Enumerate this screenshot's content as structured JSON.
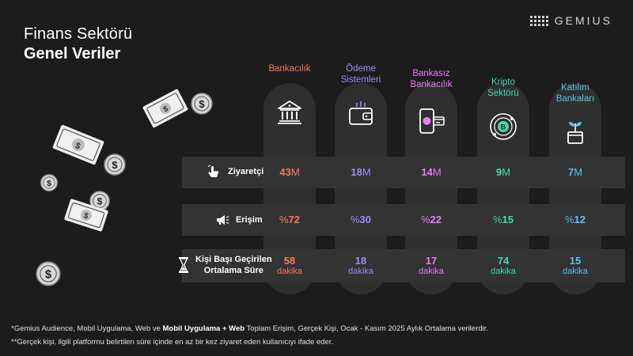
{
  "header": {
    "title_line1": "Finans Sektörü",
    "title_line2": "Genel Veriler",
    "brand": "GEMIUS"
  },
  "columns": [
    {
      "name": "Bankacılık",
      "color": "#f47c5c",
      "icon": "bank-icon"
    },
    {
      "name": "Ödeme Sistemleri",
      "color": "#a18bf5",
      "icon": "wallet-icon"
    },
    {
      "name": "Bankasız Bankacılık",
      "color": "#e97ef0",
      "icon": "mobile-payment-icon"
    },
    {
      "name": "Kripto Sektörü",
      "color": "#3fdcb0",
      "icon": "bitcoin-icon"
    },
    {
      "name": "Katılım Bankaları",
      "color": "#58c4e8",
      "icon": "plant-box-icon"
    }
  ],
  "rows": {
    "ziyaretci": "Ziyaretçi",
    "erisim": "Erişim",
    "sure_line1": "Kişi Başı Geçirilen",
    "sure_line2": "Ortalama Süre"
  },
  "chart_data": {
    "type": "table",
    "title": "Finans Sektörü Genel Veriler",
    "categories": [
      "Bankacılık",
      "Ödeme Sistemleri",
      "Bankasız Bankacılık",
      "Kripto Sektörü",
      "Katılım Bankaları"
    ],
    "series": [
      {
        "name": "Ziyaretçi",
        "unit": "M",
        "values": [
          43,
          18,
          14,
          9,
          7
        ]
      },
      {
        "name": "Erişim",
        "unit": "%",
        "values": [
          72,
          30,
          22,
          15,
          12
        ]
      },
      {
        "name": "Kişi Başı Geçirilen Ortalama Süre",
        "unit": "dakika",
        "values": [
          58,
          18,
          17,
          74,
          15
        ]
      }
    ]
  },
  "labels": {
    "unit_million": "M",
    "percent_sign": "%",
    "minutes": "dakika"
  },
  "footnotes": {
    "line1_prefix": "*Gemius Audience, Mobil Uygulama, Web ve",
    "line1_bold": "Mobil Uygulama + Web",
    "line1_suffix": "Toplam Erişim, Gerçek Kişi, Ocak -  Kasım  2025 Aylık Ortalama verilerdir.",
    "line2": "**Gerçek kişi, ilgili platformu belirtilen süre içinde en az bir kez ziyaret eden kullanıcıyı ifade eder."
  }
}
